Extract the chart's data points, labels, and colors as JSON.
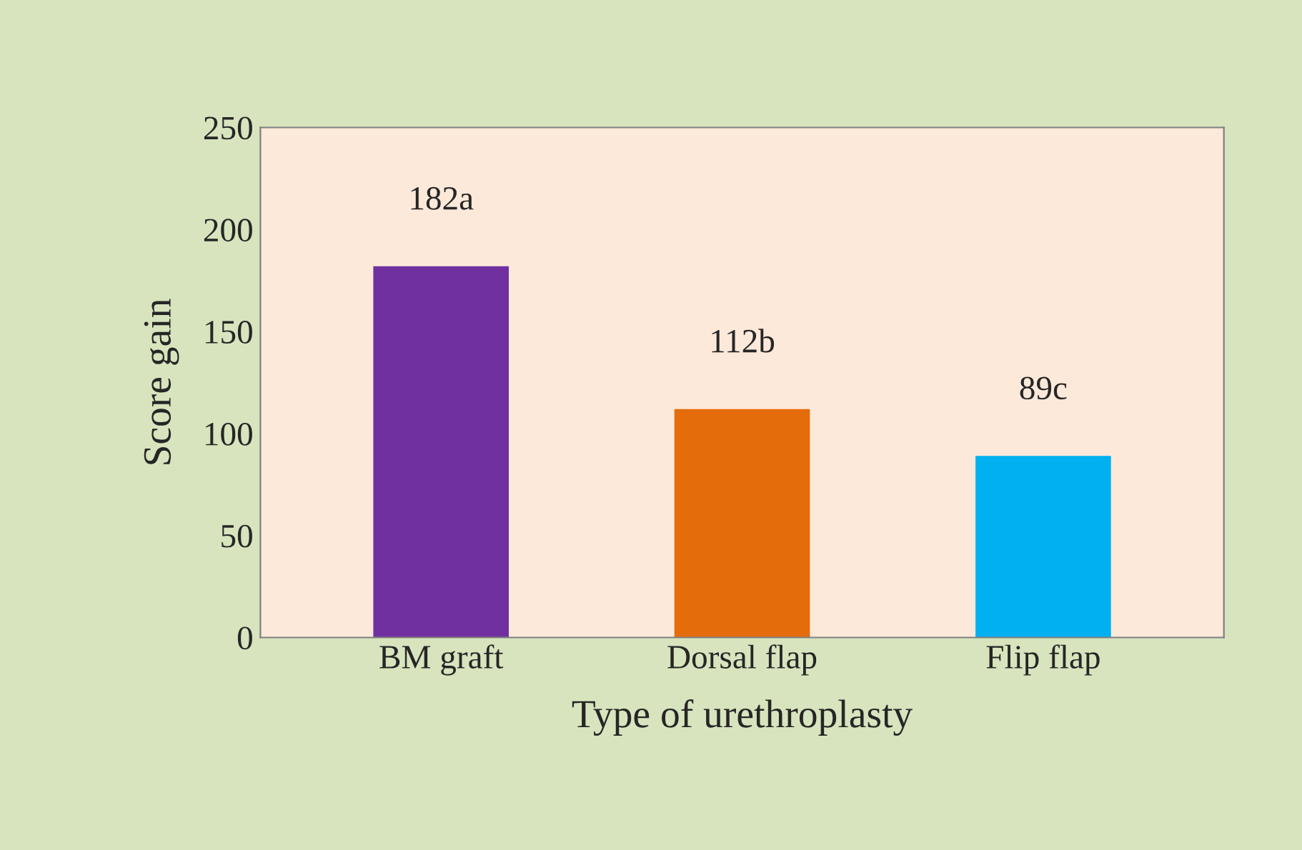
{
  "chart_data": {
    "type": "bar",
    "xlabel": "Type of urethroplasty",
    "ylabel": "Score gain",
    "categories": [
      "BM graft",
      "Dorsal flap",
      "Flip flap"
    ],
    "values": [
      182,
      112,
      89
    ],
    "colors": [
      "#7030a0",
      "#e46c0a",
      "#00b0f0"
    ],
    "value_labels": [
      "182a",
      "112b",
      "89c"
    ],
    "ylim": [
      0,
      250
    ],
    "yticks": [
      0,
      50,
      100,
      150,
      200,
      250
    ],
    "grid": false
  }
}
